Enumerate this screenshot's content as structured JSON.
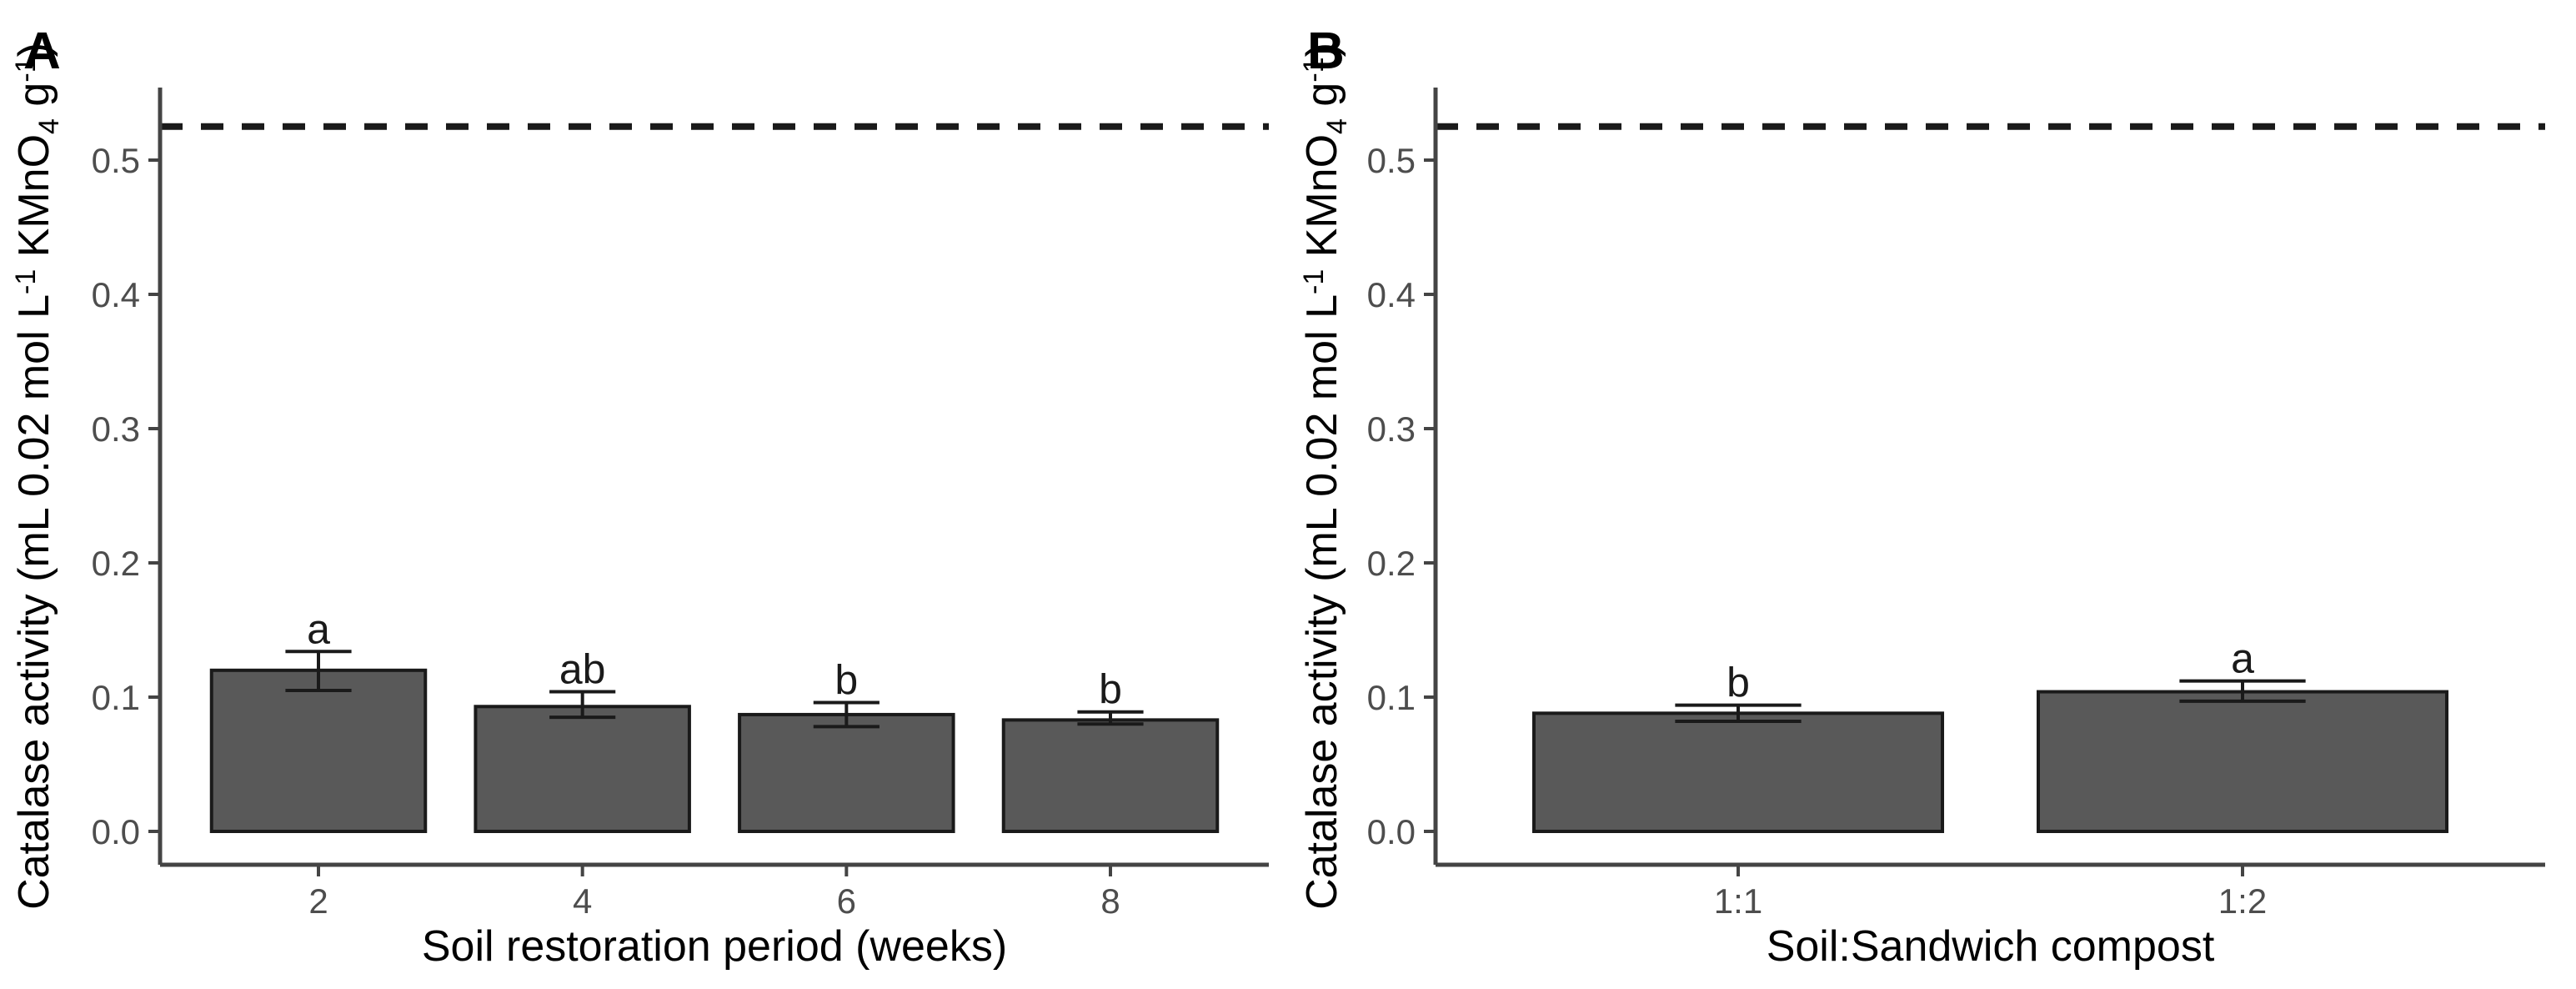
{
  "figure": {
    "background": "#ffffff"
  },
  "colors": {
    "bar_fill": "#595959",
    "bar_stroke": "#1a1a1a",
    "error_bar": "#1a1a1a",
    "axis_line": "#444444",
    "tick_label": "#4d4d4d",
    "axis_title": "#000000",
    "sig_letter": "#1a1a1a",
    "panel_label": "#000000",
    "reference_line": "#1a1a1a",
    "background": "#ffffff"
  },
  "chart_data": [
    {
      "type": "bar",
      "panel_label": "A",
      "categories": [
        "2",
        "4",
        "6",
        "8"
      ],
      "values": [
        0.12,
        0.093,
        0.087,
        0.083
      ],
      "error_upper": [
        0.134,
        0.104,
        0.096,
        0.089
      ],
      "error_lower": [
        0.105,
        0.085,
        0.078,
        0.08
      ],
      "sig_letters": [
        "a",
        "ab",
        "b",
        "b"
      ],
      "reference_line_y": 0.525,
      "reference_line_style": "dashed",
      "title": "",
      "xlabel": "Soil restoration period (weeks)",
      "ylabel": "Catalase activity (mL 0.02 mol L⁻¹ KMnO₄ g⁻¹)",
      "ylabel_parts": [
        {
          "text": "Catalase activity (mL 0.02 mol L",
          "style": "normal"
        },
        {
          "text": "-1",
          "style": "sup"
        },
        {
          "text": " KMnO",
          "style": "normal"
        },
        {
          "text": "4",
          "style": "sub"
        },
        {
          "text": " g",
          "style": "normal"
        },
        {
          "text": "-1",
          "style": "sup"
        },
        {
          "text": ")",
          "style": "normal"
        }
      ],
      "yticks": [
        "0.0",
        "0.1",
        "0.2",
        "0.3",
        "0.4",
        "0.5"
      ],
      "ylim": [
        0,
        0.555
      ],
      "grid": false,
      "legend": false
    },
    {
      "type": "bar",
      "panel_label": "B",
      "categories": [
        "1:1",
        "1:2"
      ],
      "values": [
        0.088,
        0.104
      ],
      "error_upper": [
        0.094,
        0.112
      ],
      "error_lower": [
        0.082,
        0.097
      ],
      "sig_letters": [
        "b",
        "a"
      ],
      "reference_line_y": 0.525,
      "reference_line_style": "dashed",
      "title": "",
      "xlabel": "Soil:Sandwich compost",
      "ylabel": "Catalase activity (mL 0.02 mol L⁻¹ KMnO₄ g⁻¹)",
      "ylabel_parts": [
        {
          "text": "Catalase activity (mL 0.02 mol L",
          "style": "normal"
        },
        {
          "text": "-1",
          "style": "sup"
        },
        {
          "text": " KMnO",
          "style": "normal"
        },
        {
          "text": "4",
          "style": "sub"
        },
        {
          "text": " g",
          "style": "normal"
        },
        {
          "text": "-1",
          "style": "sup"
        },
        {
          "text": ")",
          "style": "normal"
        }
      ],
      "yticks": [
        "0.0",
        "0.1",
        "0.2",
        "0.3",
        "0.4",
        "0.5"
      ],
      "ylim": [
        0,
        0.555
      ],
      "grid": false,
      "legend": false
    }
  ]
}
